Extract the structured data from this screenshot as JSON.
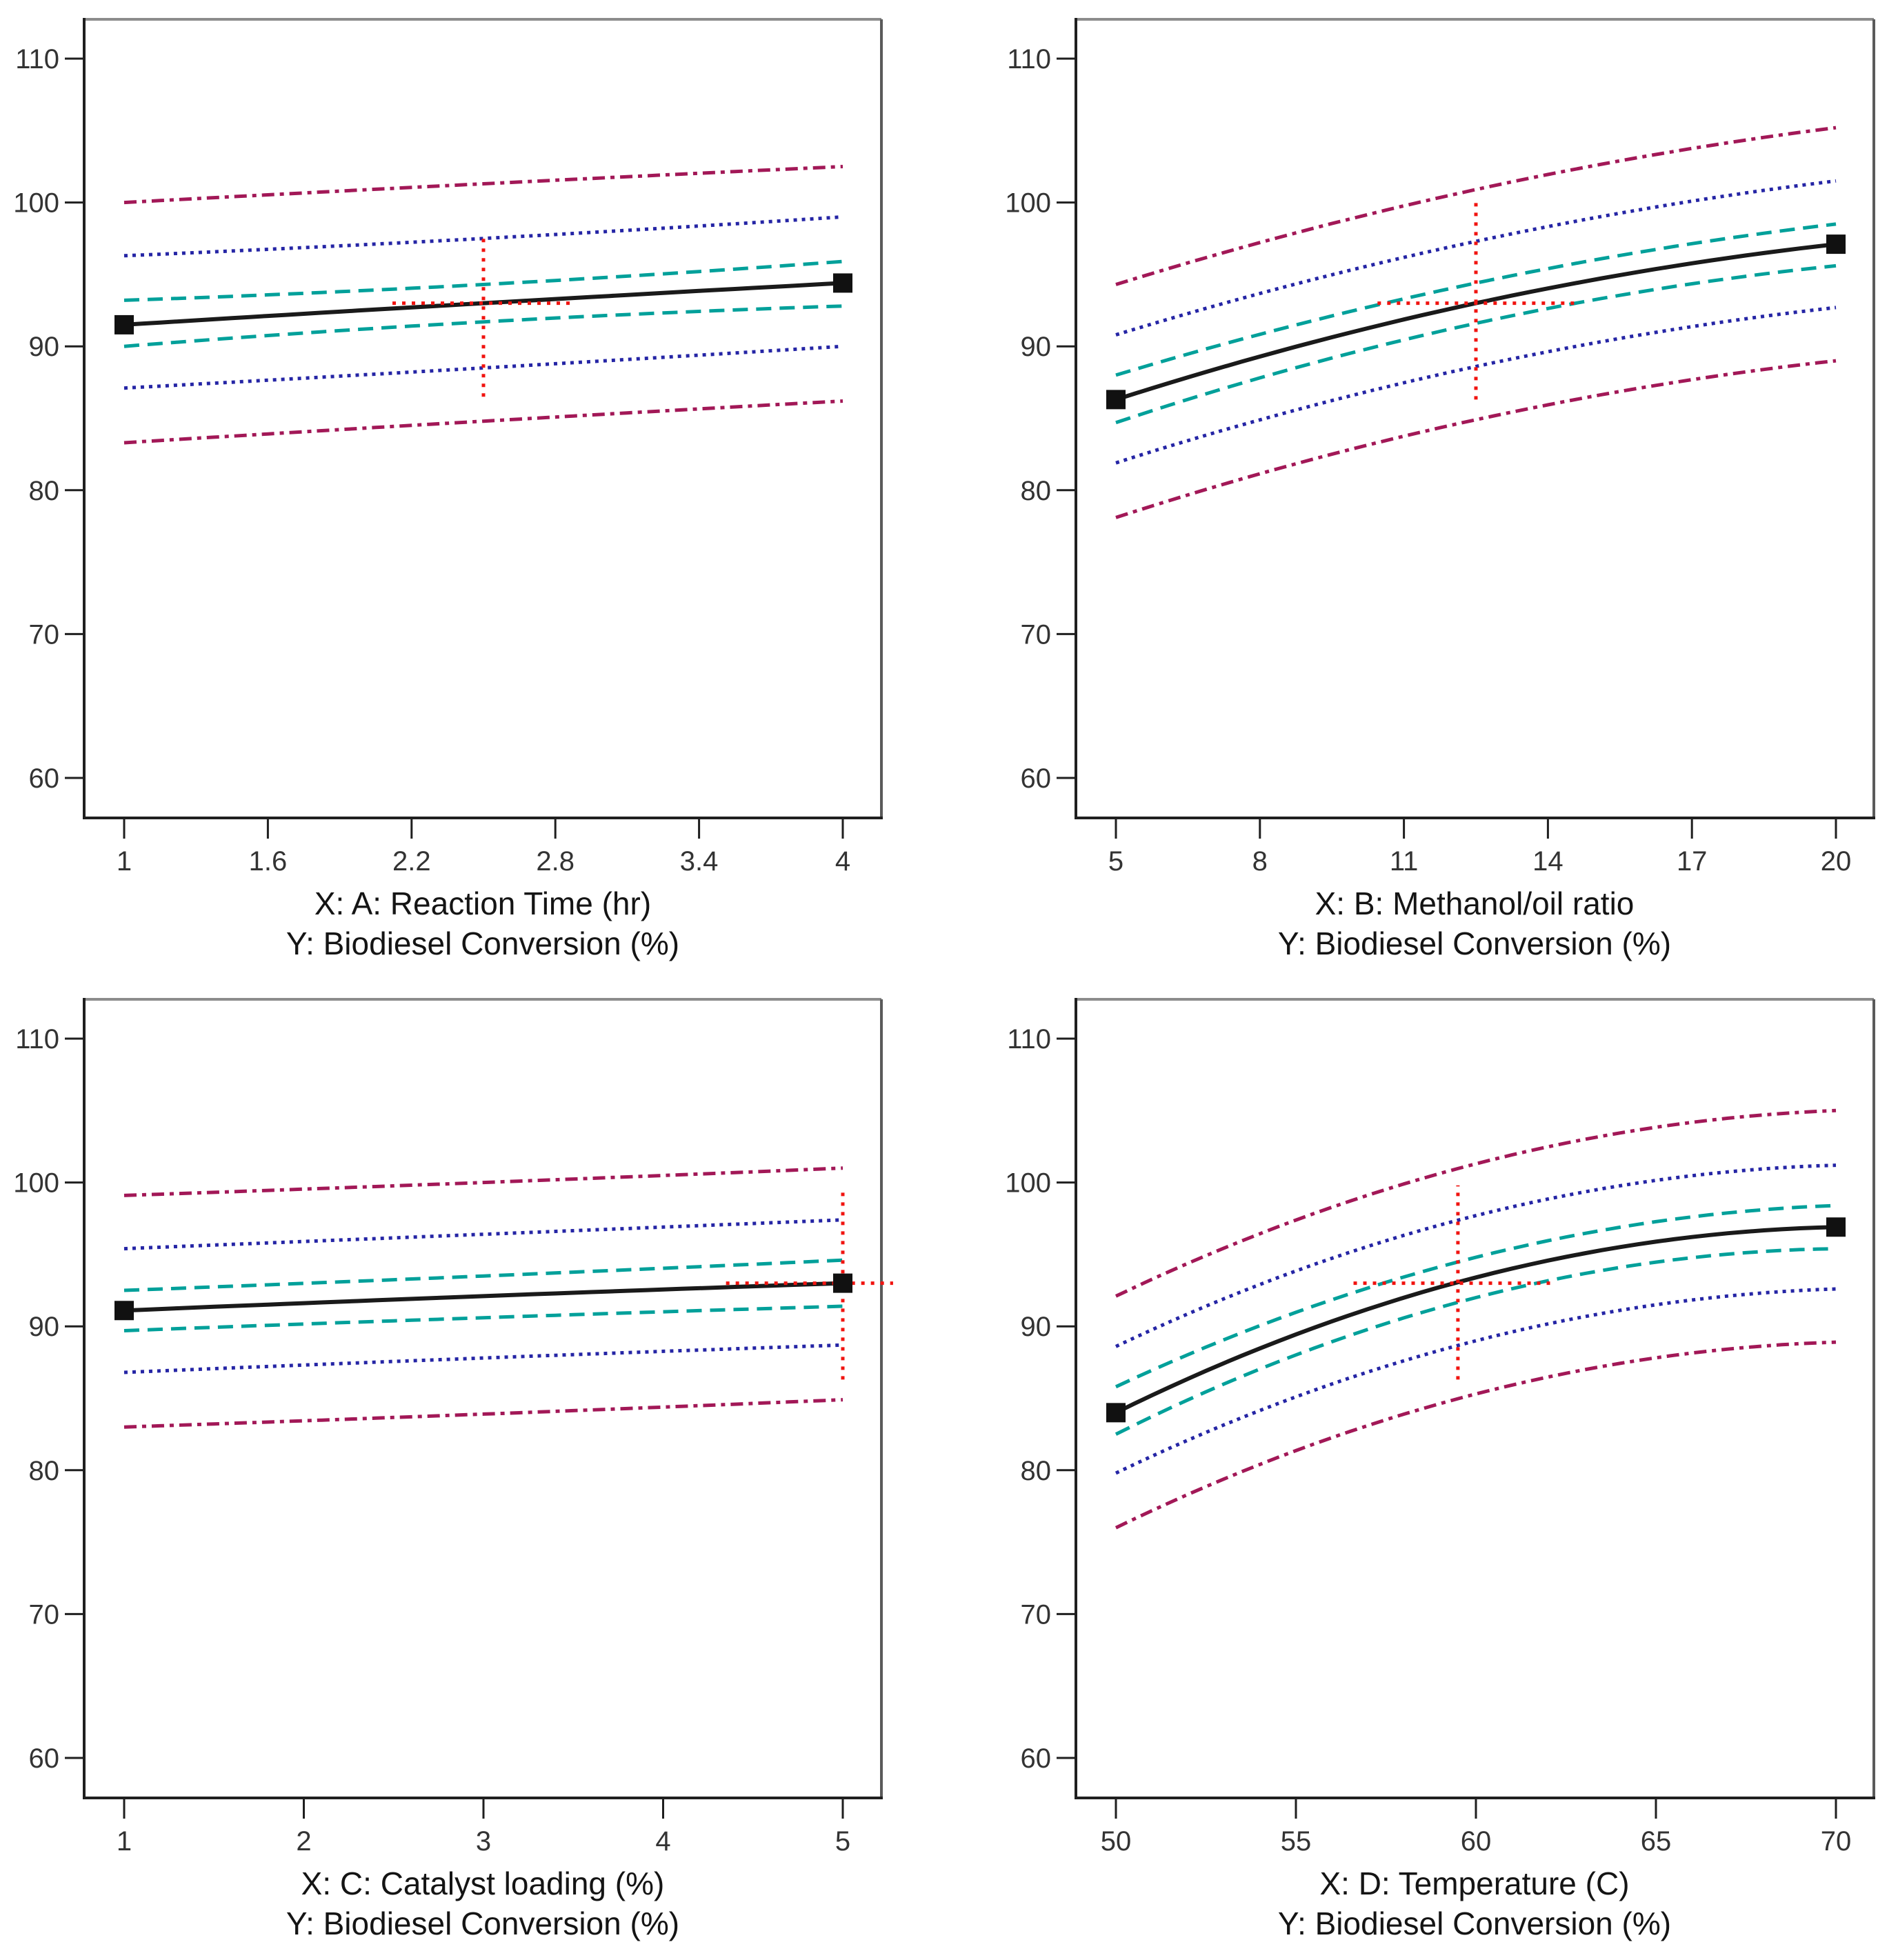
{
  "figure": {
    "background": "#ffffff",
    "description_visible_text_only": true
  },
  "colors": {
    "mean_line": "#1a1a1a",
    "marker": "#111111",
    "ci_band": "#00A09A",
    "pi_band": "#2525A5",
    "ti_band": "#A21857",
    "crosshair": "#F01410",
    "frame": "#1f1f1f",
    "frame_top_shadow": "#8c8c8c",
    "frame_right_shadow": "#5a5a5a",
    "tick_text": "#333333",
    "title_text": "#141414"
  },
  "chart_data": [
    {
      "type": "line",
      "xlabel": "X: A: Reaction Time (hr)",
      "ylabel": "Y: Biodiesel Conversion (%)",
      "x_range": [
        1,
        4
      ],
      "y_range": [
        60,
        110
      ],
      "x_ticks": [
        "1",
        "1.6",
        "2.2",
        "2.8",
        "3.4",
        "4"
      ],
      "x_tick_values": [
        1,
        1.6,
        2.2,
        2.8,
        3.4,
        4
      ],
      "y_ticks": [
        "110",
        "100",
        "90",
        "80",
        "70",
        "60"
      ],
      "y_tick_values": [
        110,
        100,
        90,
        80,
        70,
        60
      ],
      "grid": false,
      "legend": "none",
      "series": [
        {
          "name": "ti-upper",
          "role": "ti",
          "x": [
            1,
            2.5,
            4
          ],
          "y": [
            100.0,
            101.3,
            102.5
          ]
        },
        {
          "name": "pi-upper",
          "role": "pi",
          "x": [
            1,
            2.5,
            4
          ],
          "y": [
            96.3,
            97.5,
            99.0
          ]
        },
        {
          "name": "ci-upper",
          "role": "ci",
          "x": [
            1,
            2.5,
            4
          ],
          "y": [
            93.2,
            94.3,
            95.9
          ]
        },
        {
          "name": "prediction",
          "role": "mean",
          "x": [
            1,
            2.5,
            4
          ],
          "y": [
            91.5,
            93.0,
            94.4
          ]
        },
        {
          "name": "ci-lower",
          "role": "ci",
          "x": [
            1,
            2.5,
            4
          ],
          "y": [
            90.0,
            91.7,
            92.8
          ]
        },
        {
          "name": "pi-lower",
          "role": "pi",
          "x": [
            1,
            2.5,
            4
          ],
          "y": [
            87.1,
            88.5,
            90.0
          ]
        },
        {
          "name": "ti-lower",
          "role": "ti",
          "x": [
            1,
            2.5,
            4
          ],
          "y": [
            83.3,
            84.8,
            86.2
          ]
        }
      ],
      "markers": [
        {
          "x": 1,
          "y": 91.5
        },
        {
          "x": 4,
          "y": 94.4
        }
      ],
      "crosshair": {
        "x": 2.5,
        "y": 93,
        "y_span": [
          86.5,
          97.5
        ],
        "x_span": [
          2.12,
          2.88
        ]
      }
    },
    {
      "type": "line",
      "xlabel": "X: B: Methanol/oil ratio",
      "ylabel": "Y: Biodiesel Conversion (%)",
      "x_range": [
        5,
        20
      ],
      "y_range": [
        60,
        110
      ],
      "x_ticks": [
        "5",
        "8",
        "11",
        "14",
        "17",
        "20"
      ],
      "x_tick_values": [
        5,
        8,
        11,
        14,
        17,
        20
      ],
      "y_ticks": [
        "110",
        "100",
        "90",
        "80",
        "70",
        "60"
      ],
      "y_tick_values": [
        110,
        100,
        90,
        80,
        70,
        60
      ],
      "grid": false,
      "legend": "none",
      "series": [
        {
          "name": "ti-upper",
          "role": "ti",
          "x": [
            5,
            12.5,
            20
          ],
          "y": [
            94.3,
            100.9,
            105.2
          ]
        },
        {
          "name": "pi-upper",
          "role": "pi",
          "x": [
            5,
            12.5,
            20
          ],
          "y": [
            90.8,
            97.3,
            101.5
          ]
        },
        {
          "name": "ci-upper",
          "role": "ci",
          "x": [
            5,
            12.5,
            20
          ],
          "y": [
            88.0,
            94.4,
            98.5
          ]
        },
        {
          "name": "prediction",
          "role": "mean",
          "x": [
            5,
            12.5,
            20
          ],
          "y": [
            86.3,
            93.0,
            97.1
          ]
        },
        {
          "name": "ci-lower",
          "role": "ci",
          "x": [
            5,
            12.5,
            20
          ],
          "y": [
            84.7,
            91.6,
            95.6
          ]
        },
        {
          "name": "pi-lower",
          "role": "pi",
          "x": [
            5,
            12.5,
            20
          ],
          "y": [
            81.9,
            88.6,
            92.7
          ]
        },
        {
          "name": "ti-lower",
          "role": "ti",
          "x": [
            5,
            12.5,
            20
          ],
          "y": [
            78.1,
            84.9,
            89.0
          ]
        }
      ],
      "markers": [
        {
          "x": 5,
          "y": 86.3
        },
        {
          "x": 20,
          "y": 97.1
        }
      ],
      "crosshair": {
        "x": 12.5,
        "y": 93,
        "y_span": [
          86.3,
          100.0
        ],
        "x_span": [
          10.45,
          14.6
        ]
      }
    },
    {
      "type": "line",
      "xlabel": "X: C: Catalyst loading (%)",
      "ylabel": "Y: Biodiesel Conversion (%)",
      "x_range": [
        1,
        5
      ],
      "y_range": [
        60,
        110
      ],
      "x_ticks": [
        "1",
        "2",
        "3",
        "4",
        "5"
      ],
      "x_tick_values": [
        1,
        2,
        3,
        4,
        5
      ],
      "y_ticks": [
        "110",
        "100",
        "90",
        "80",
        "70",
        "60"
      ],
      "y_tick_values": [
        110,
        100,
        90,
        80,
        70,
        60
      ],
      "grid": false,
      "legend": "none",
      "series": [
        {
          "name": "ti-upper",
          "role": "ti",
          "x": [
            1,
            3,
            5
          ],
          "y": [
            99.1,
            100.0,
            101.0
          ]
        },
        {
          "name": "pi-upper",
          "role": "pi",
          "x": [
            1,
            3,
            5
          ],
          "y": [
            95.4,
            96.4,
            97.4
          ]
        },
        {
          "name": "ci-upper",
          "role": "ci",
          "x": [
            1,
            3,
            5
          ],
          "y": [
            92.5,
            93.5,
            94.6
          ]
        },
        {
          "name": "prediction",
          "role": "mean",
          "x": [
            1,
            3,
            5
          ],
          "y": [
            91.1,
            92.1,
            93.0
          ]
        },
        {
          "name": "ci-lower",
          "role": "ci",
          "x": [
            1,
            3,
            5
          ],
          "y": [
            89.7,
            90.6,
            91.4
          ]
        },
        {
          "name": "pi-lower",
          "role": "pi",
          "x": [
            1,
            3,
            5
          ],
          "y": [
            86.8,
            87.8,
            88.7
          ]
        },
        {
          "name": "ti-lower",
          "role": "ti",
          "x": [
            1,
            3,
            5
          ],
          "y": [
            83.0,
            83.9,
            84.9
          ]
        }
      ],
      "markers": [
        {
          "x": 1,
          "y": 91.1
        },
        {
          "x": 5,
          "y": 93.0
        }
      ],
      "crosshair": {
        "x": 5,
        "y": 93,
        "y_span": [
          86.3,
          99.7
        ],
        "x_span": [
          4.35,
          5.28
        ]
      }
    },
    {
      "type": "line",
      "xlabel": "X: D: Temperature (C)",
      "ylabel": "Y: Biodiesel Conversion (%)",
      "x_range": [
        50,
        70
      ],
      "y_range": [
        60,
        110
      ],
      "x_ticks": [
        "50",
        "55",
        "60",
        "65",
        "70"
      ],
      "x_tick_values": [
        50,
        55,
        60,
        65,
        70
      ],
      "y_ticks": [
        "110",
        "100",
        "90",
        "80",
        "70",
        "60"
      ],
      "y_tick_values": [
        110,
        100,
        90,
        80,
        70,
        60
      ],
      "grid": false,
      "legend": "none",
      "series": [
        {
          "name": "ti-upper",
          "role": "ti",
          "x": [
            50,
            60,
            70
          ],
          "y": [
            92.1,
            101.3,
            105.0
          ]
        },
        {
          "name": "pi-upper",
          "role": "pi",
          "x": [
            50,
            60,
            70
          ],
          "y": [
            88.6,
            97.7,
            101.2
          ]
        },
        {
          "name": "ci-upper",
          "role": "ci",
          "x": [
            50,
            60,
            70
          ],
          "y": [
            85.8,
            94.8,
            98.4
          ]
        },
        {
          "name": "prediction",
          "role": "mean",
          "x": [
            50,
            60,
            70
          ],
          "y": [
            84.0,
            93.4,
            96.9
          ]
        },
        {
          "name": "ci-lower",
          "role": "ci",
          "x": [
            50,
            60,
            70
          ],
          "y": [
            82.5,
            92.0,
            95.4
          ]
        },
        {
          "name": "pi-lower",
          "role": "pi",
          "x": [
            50,
            60,
            70
          ],
          "y": [
            79.8,
            89.0,
            92.6
          ]
        },
        {
          "name": "ti-lower",
          "role": "ti",
          "x": [
            50,
            60,
            70
          ],
          "y": [
            76.0,
            85.3,
            88.9
          ]
        }
      ],
      "markers": [
        {
          "x": 50,
          "y": 84.0
        },
        {
          "x": 70,
          "y": 96.9
        }
      ],
      "crosshair": {
        "x": 59.5,
        "y": 93,
        "y_span": [
          86.3,
          99.8
        ],
        "x_span": [
          56.6,
          62.1
        ]
      }
    }
  ]
}
